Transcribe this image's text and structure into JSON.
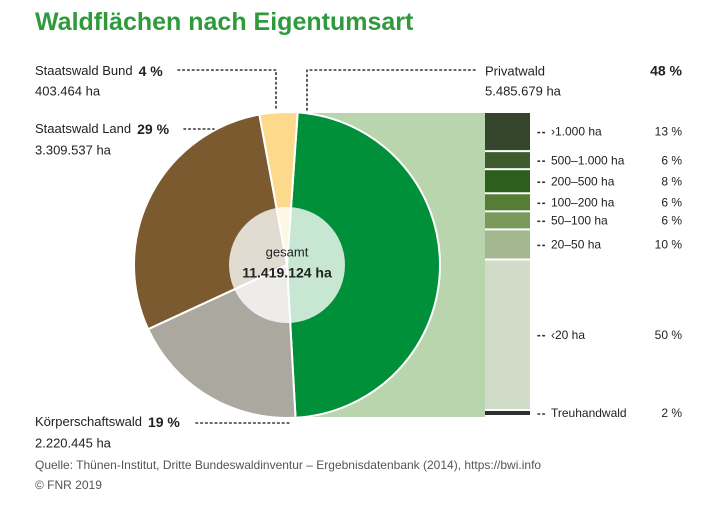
{
  "chart_data": {
    "type": "pie-of-bar",
    "title": "Waldflächen nach Eigentumsart",
    "pie": {
      "categories": [
        "Privatwald",
        "Körperschaftswald",
        "Staatswald Land",
        "Staatswald Bund"
      ],
      "values": [
        48,
        19,
        29,
        4
      ],
      "value_labels": [
        "48 %",
        "19 %",
        "29 %",
        "4 %"
      ],
      "area_labels": [
        "5.485.679 ha",
        "2.220.445 ha",
        "3.309.537 ha",
        "403.464 ha"
      ],
      "colors": [
        "#00903a",
        "#aba99f",
        "#7a5a2e",
        "#fcd98b"
      ]
    },
    "center_label": "gesamt",
    "total_label": "11.419.124 ha",
    "bar": {
      "categories": [
        "›1.000 ha",
        "500–1.000 ha",
        "200–500 ha",
        "100–200 ha",
        "50–100 ha",
        "20–50 ha",
        "‹20 ha",
        "Treuhandwald"
      ],
      "values": [
        13,
        6,
        8,
        6,
        6,
        10,
        50,
        2
      ],
      "value_labels": [
        "13 %",
        "6 %",
        "8 %",
        "6 %",
        "6 %",
        "10 %",
        "50 %",
        "2 %"
      ],
      "colors": [
        "#35452e",
        "#3e5b2e",
        "#2e5e1c",
        "#557d35",
        "#7a9a5c",
        "#a4b890",
        "#d0dcc8",
        "#2f2f2f"
      ]
    },
    "source": "Quelle: Thünen-Institut, Dritte Bundeswaldinventur – Ergebnisdatenbank (2014), https://bwi.info",
    "copyright": "© FNR 2019"
  }
}
